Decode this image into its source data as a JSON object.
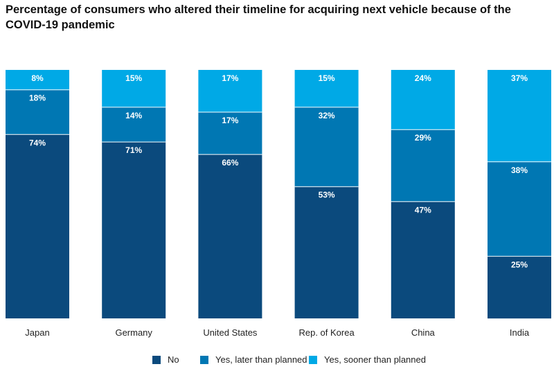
{
  "title": "Percentage of consumers who altered their timeline for acquiring next vehicle because of the COVID-19 pandemic",
  "colors": {
    "no": "#0b4a7d",
    "later": "#0077b3",
    "sooner": "#00a9e6",
    "label": "#ffffff"
  },
  "chart_data": {
    "type": "bar",
    "stacked": true,
    "title": "Percentage of consumers who altered their timeline for acquiring next vehicle because of the COVID-19 pandemic",
    "categories": [
      "Japan",
      "Germany",
      "United States",
      "Rep. of Korea",
      "China",
      "India"
    ],
    "series": [
      {
        "name": "No",
        "values": [
          74,
          71,
          66,
          53,
          47,
          25
        ]
      },
      {
        "name": "Yes, later than planned",
        "values": [
          18,
          14,
          17,
          32,
          29,
          38
        ]
      },
      {
        "name": "Yes, sooner than planned",
        "values": [
          8,
          15,
          17,
          15,
          24,
          37
        ]
      }
    ],
    "unit": "%",
    "legend": "bottom",
    "grid": false
  }
}
